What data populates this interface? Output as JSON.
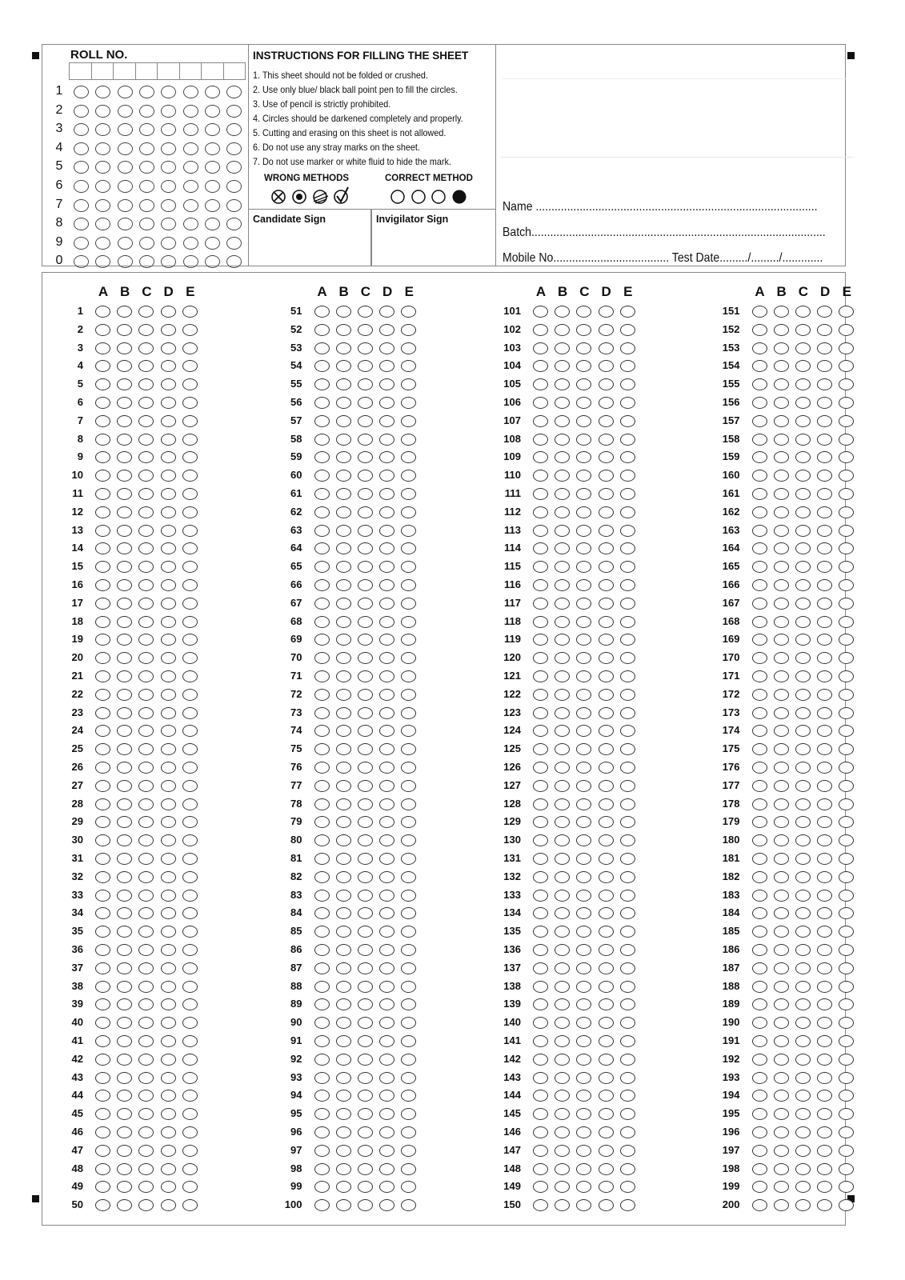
{
  "roll_no": {
    "label": "ROLL NO.",
    "digits": [
      "1",
      "2",
      "3",
      "4",
      "5",
      "6",
      "7",
      "8",
      "9",
      "0"
    ],
    "positions": 8
  },
  "instructions": {
    "title": "INSTRUCTIONS FOR FILLING THE SHEET",
    "items": [
      "1.  This sheet should not be folded or crushed.",
      "2.  Use only blue/ black ball point pen to fill the circles.",
      "3.  Use of pencil is strictly prohibited.",
      "4.  Circles should be darkened completely and properly.",
      "5.  Cutting and erasing on this sheet is not allowed.",
      "6.  Do not use any stray marks on the sheet.",
      "7.  Do not use marker or white fluid to hide the mark."
    ],
    "wrong_methods_label": "WRONG METHODS",
    "correct_method_label": "CORRECT METHOD"
  },
  "signs": {
    "candidate": "Candidate Sign",
    "invigilator": "Invigilator Sign"
  },
  "details": {
    "name": "Name ..........................................................................................",
    "batch": "Batch..............................................................................................",
    "mobile": "Mobile No..................................... Test Date........./........./............."
  },
  "answers": {
    "options": [
      "A",
      "B",
      "C",
      "D",
      "E"
    ],
    "columns": [
      {
        "start": 1,
        "end": 50
      },
      {
        "start": 51,
        "end": 100
      },
      {
        "start": 101,
        "end": 150
      },
      {
        "start": 151,
        "end": 200
      }
    ]
  }
}
